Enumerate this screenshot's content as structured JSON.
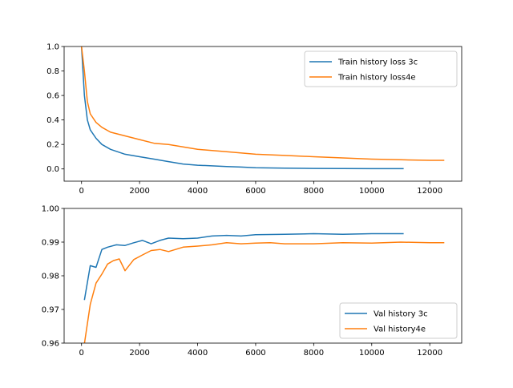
{
  "chart_data": [
    {
      "type": "line",
      "title": "",
      "xlabel": "",
      "ylabel": "",
      "xlim": [
        -600,
        13100
      ],
      "ylim": [
        -0.1,
        1.0
      ],
      "xticks": [
        0,
        2000,
        4000,
        6000,
        8000,
        10000,
        12000
      ],
      "yticks": [
        0.0,
        0.2,
        0.4,
        0.6,
        0.8,
        1.0
      ],
      "xtick_labels": [
        "0",
        "2000",
        "4000",
        "6000",
        "8000",
        "10000",
        "12000"
      ],
      "ytick_labels": [
        "0.0",
        "0.2",
        "0.4",
        "0.6",
        "0.8",
        "1.0"
      ],
      "legend_position": "upper right",
      "grid": false,
      "series": [
        {
          "name": "Train history loss 3c",
          "color": "#1f77b4",
          "x": [
            0,
            100,
            200,
            300,
            500,
            700,
            1000,
            1500,
            2000,
            2500,
            3000,
            3500,
            4000,
            5000,
            5500,
            6000,
            7000,
            8000,
            9000,
            10000,
            11100
          ],
          "y": [
            1.0,
            0.6,
            0.4,
            0.32,
            0.25,
            0.2,
            0.16,
            0.12,
            0.1,
            0.08,
            0.06,
            0.04,
            0.03,
            0.02,
            0.015,
            0.01,
            0.006,
            0.004,
            0.003,
            0.002,
            0.002
          ]
        },
        {
          "name": "Train history loss4e",
          "color": "#ff7f0e",
          "x": [
            0,
            100,
            200,
            300,
            500,
            700,
            1000,
            1500,
            2000,
            2500,
            3000,
            3500,
            4000,
            5000,
            6000,
            7000,
            8000,
            9000,
            10000,
            11000,
            12000,
            12500
          ],
          "y": [
            1.0,
            0.8,
            0.55,
            0.45,
            0.38,
            0.34,
            0.3,
            0.27,
            0.24,
            0.21,
            0.2,
            0.18,
            0.16,
            0.14,
            0.12,
            0.11,
            0.1,
            0.09,
            0.08,
            0.075,
            0.07,
            0.07
          ]
        }
      ]
    },
    {
      "type": "line",
      "title": "",
      "xlabel": "",
      "ylabel": "",
      "xlim": [
        -600,
        13100
      ],
      "ylim": [
        0.96,
        1.0
      ],
      "xticks": [
        0,
        2000,
        4000,
        6000,
        8000,
        10000,
        12000
      ],
      "yticks": [
        0.96,
        0.97,
        0.98,
        0.99,
        1.0
      ],
      "xtick_labels": [
        "0",
        "2000",
        "4000",
        "6000",
        "8000",
        "10000",
        "12000"
      ],
      "ytick_labels": [
        "0.96",
        "0.97",
        "0.98",
        "0.99",
        "1.00"
      ],
      "legend_position": "lower right",
      "grid": false,
      "series": [
        {
          "name": "Val history 3c",
          "color": "#1f77b4",
          "x": [
            100,
            300,
            500,
            700,
            900,
            1200,
            1500,
            1800,
            2100,
            2400,
            2700,
            3000,
            3500,
            4000,
            4500,
            5000,
            5500,
            6000,
            7000,
            8000,
            9000,
            10000,
            11100
          ],
          "y": [
            0.9728,
            0.983,
            0.9825,
            0.9878,
            0.9885,
            0.9892,
            0.989,
            0.9898,
            0.9905,
            0.9895,
            0.9905,
            0.9912,
            0.991,
            0.9912,
            0.9918,
            0.992,
            0.9918,
            0.9922,
            0.9923,
            0.9925,
            0.9923,
            0.9925,
            0.9925
          ]
        },
        {
          "name": "Val history4e",
          "color": "#ff7f0e",
          "x": [
            100,
            300,
            500,
            700,
            900,
            1100,
            1300,
            1500,
            1800,
            2100,
            2400,
            2700,
            3000,
            3500,
            4000,
            4500,
            5000,
            5500,
            6000,
            6500,
            7000,
            8000,
            9000,
            10000,
            11000,
            12000,
            12500
          ],
          "y": [
            0.9598,
            0.9715,
            0.9778,
            0.9805,
            0.9835,
            0.9845,
            0.985,
            0.9815,
            0.9848,
            0.9862,
            0.9875,
            0.9878,
            0.9872,
            0.9885,
            0.9888,
            0.9892,
            0.9898,
            0.9895,
            0.9897,
            0.9898,
            0.9895,
            0.9895,
            0.9898,
            0.9897,
            0.99,
            0.9898,
            0.9898
          ]
        }
      ]
    }
  ]
}
